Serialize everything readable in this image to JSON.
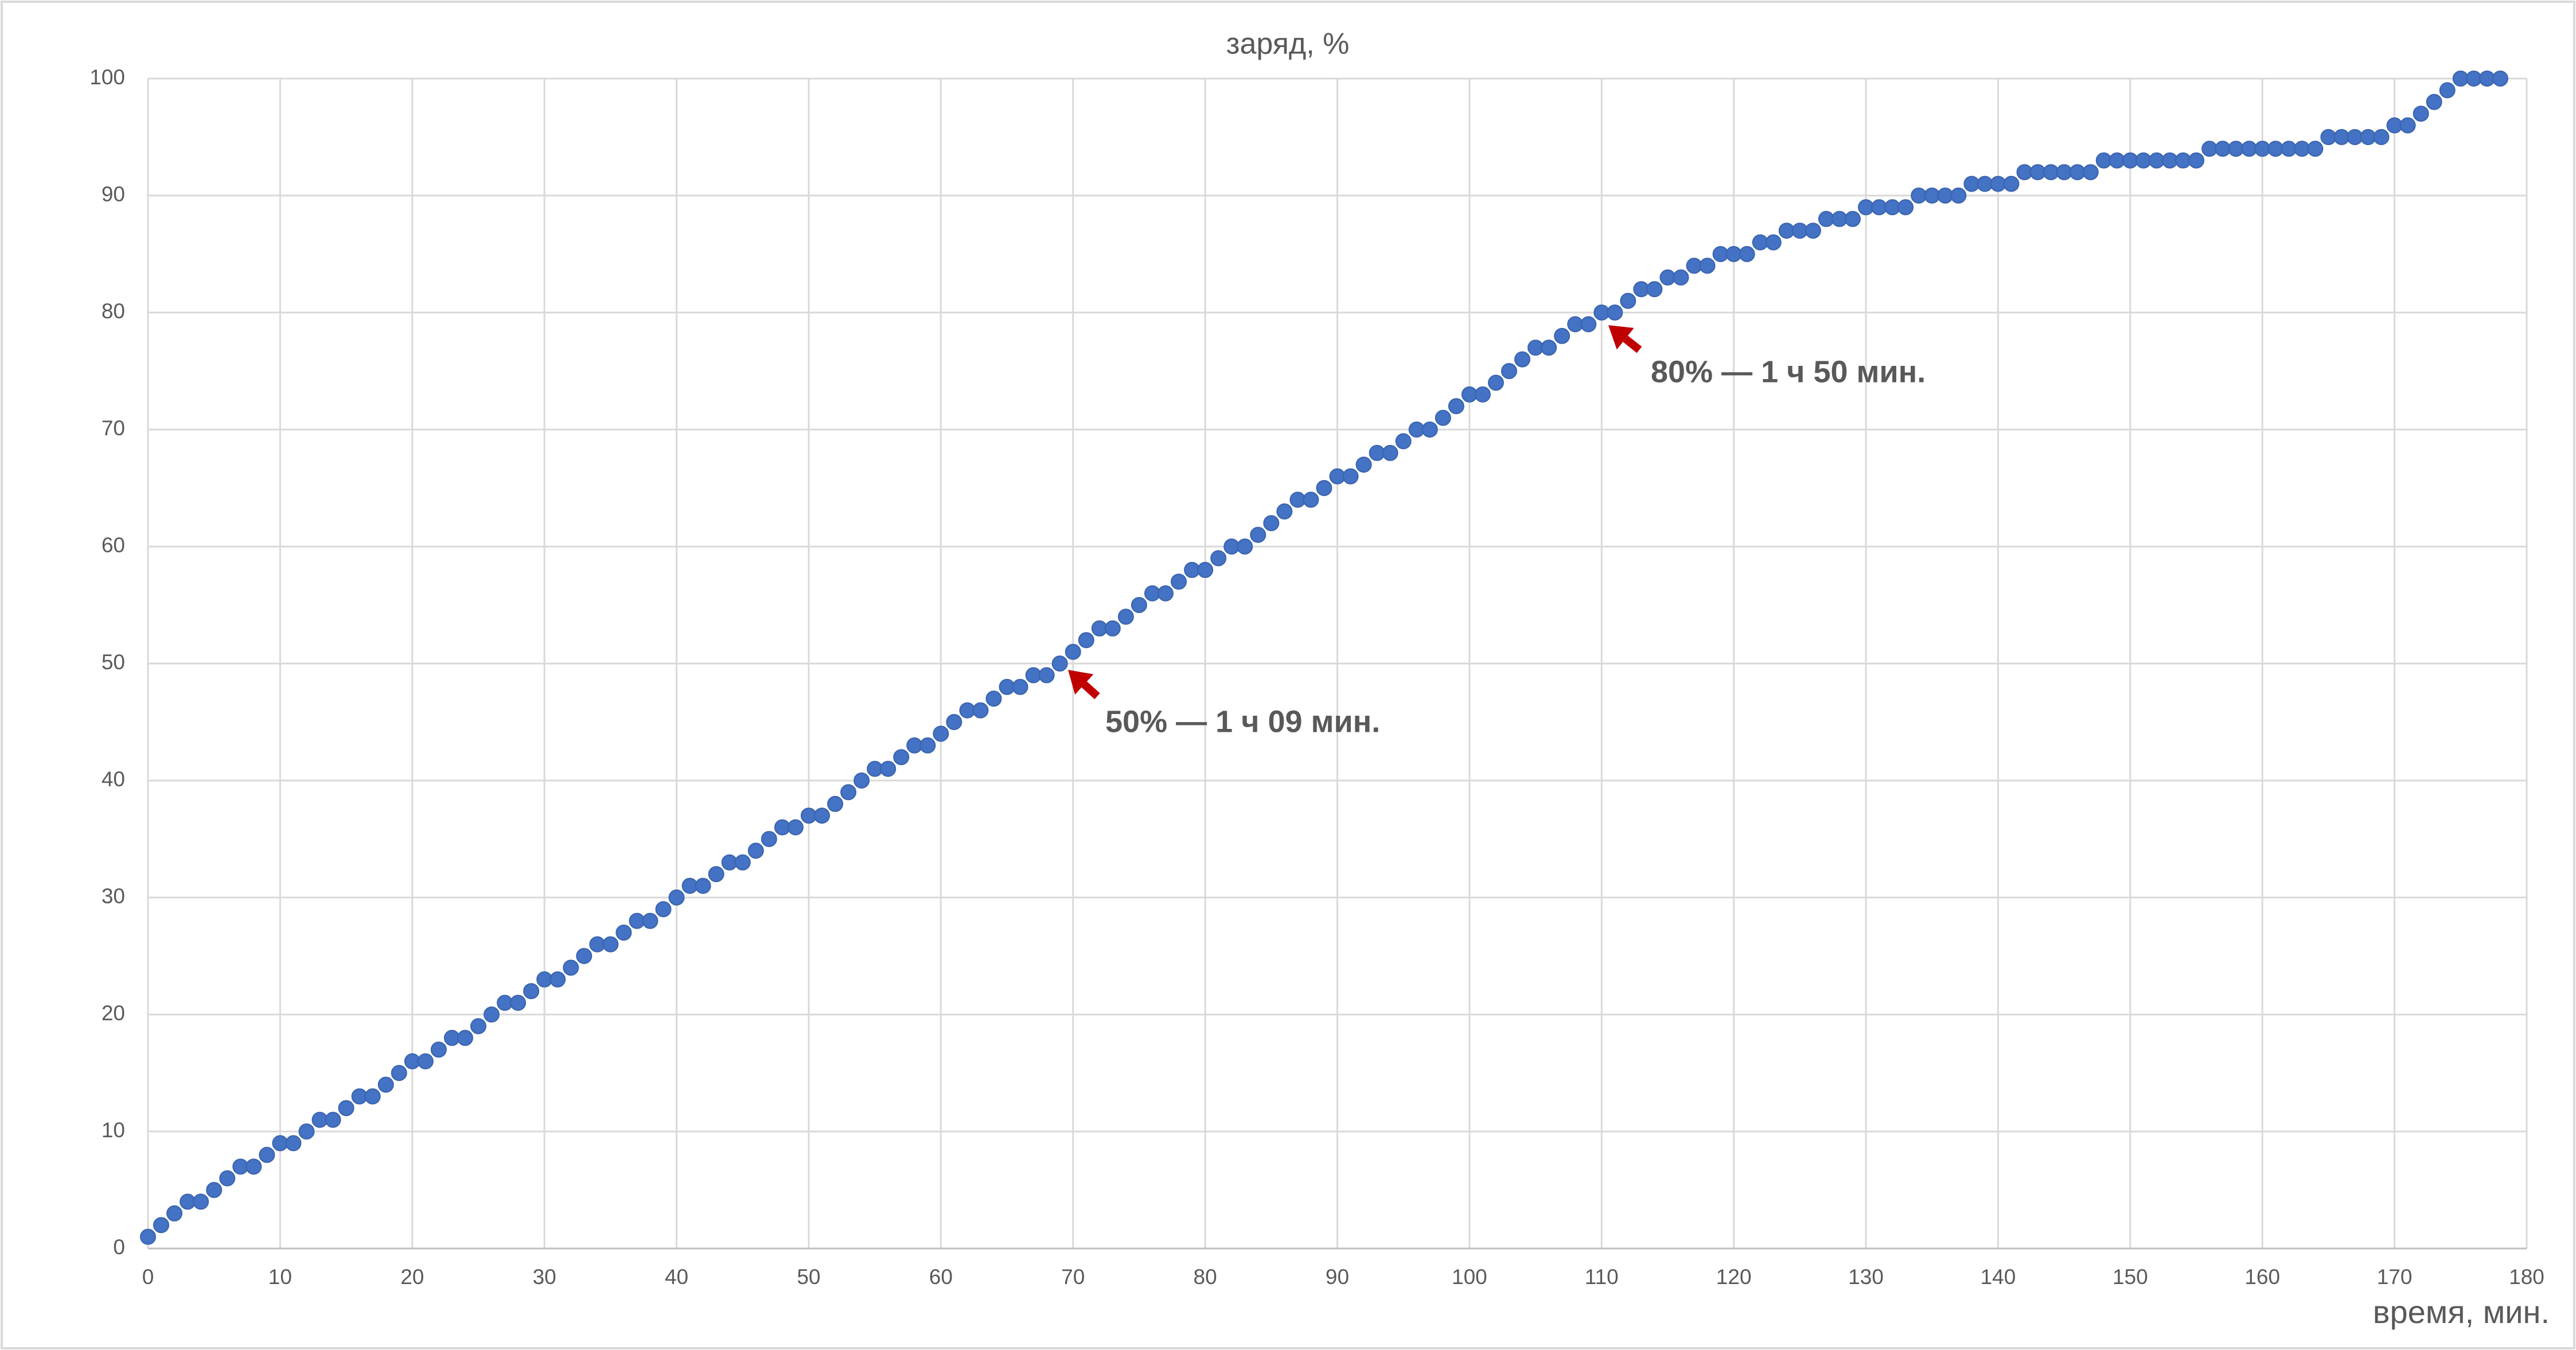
{
  "chart_data": {
    "type": "scatter",
    "title": "заряд, %",
    "x_label": "время, мин.",
    "x": [
      0,
      1,
      2,
      3,
      4,
      5,
      6,
      7,
      8,
      9,
      10,
      11,
      12,
      13,
      14,
      15,
      16,
      17,
      18,
      19,
      20,
      21,
      22,
      23,
      24,
      25,
      26,
      27,
      28,
      29,
      30,
      31,
      32,
      33,
      34,
      35,
      36,
      37,
      38,
      39,
      40,
      41,
      42,
      43,
      44,
      45,
      46,
      47,
      48,
      49,
      50,
      51,
      52,
      53,
      54,
      55,
      56,
      57,
      58,
      59,
      60,
      61,
      62,
      63,
      64,
      65,
      66,
      67,
      68,
      69,
      70,
      71,
      72,
      73,
      74,
      75,
      76,
      77,
      78,
      79,
      80,
      81,
      82,
      83,
      84,
      85,
      86,
      87,
      88,
      89,
      90,
      91,
      92,
      93,
      94,
      95,
      96,
      97,
      98,
      99,
      100,
      101,
      102,
      103,
      104,
      105,
      106,
      107,
      108,
      109,
      110,
      111,
      112,
      113,
      114,
      115,
      116,
      117,
      118,
      119,
      120,
      121,
      122,
      123,
      124,
      125,
      126,
      127,
      128,
      129,
      130,
      131,
      132,
      133,
      134,
      135,
      136,
      137,
      138,
      139,
      140,
      141,
      142,
      143,
      144,
      145,
      146,
      147,
      148,
      149,
      150,
      151,
      152,
      153,
      154,
      155,
      156,
      157,
      158,
      159,
      160,
      161,
      162,
      163,
      164,
      165,
      166,
      167,
      168,
      169,
      170,
      171,
      172,
      173,
      174,
      175,
      176,
      177,
      178
    ],
    "values": [
      1,
      2,
      3,
      4,
      4,
      5,
      6,
      7,
      7,
      8,
      9,
      9,
      10,
      11,
      11,
      12,
      13,
      13,
      14,
      15,
      16,
      16,
      17,
      18,
      18,
      19,
      20,
      21,
      21,
      22,
      23,
      23,
      24,
      25,
      26,
      26,
      27,
      28,
      28,
      29,
      30,
      31,
      31,
      32,
      33,
      33,
      34,
      35,
      36,
      36,
      37,
      37,
      38,
      39,
      40,
      41,
      41,
      42,
      43,
      43,
      44,
      45,
      46,
      46,
      47,
      48,
      48,
      49,
      49,
      50,
      51,
      52,
      53,
      53,
      54,
      55,
      56,
      56,
      57,
      58,
      58,
      59,
      60,
      60,
      61,
      62,
      63,
      64,
      64,
      65,
      66,
      66,
      67,
      68,
      68,
      69,
      70,
      70,
      71,
      72,
      73,
      73,
      74,
      75,
      76,
      77,
      77,
      78,
      79,
      79,
      80,
      80,
      81,
      82,
      82,
      83,
      83,
      84,
      84,
      85,
      85,
      85,
      86,
      86,
      87,
      87,
      87,
      88,
      88,
      88,
      89,
      89,
      89,
      89,
      90,
      90,
      90,
      90,
      91,
      91,
      91,
      91,
      92,
      92,
      92,
      92,
      92,
      92,
      93,
      93,
      93,
      93,
      93,
      93,
      93,
      93,
      94,
      94,
      94,
      94,
      94,
      94,
      94,
      94,
      94,
      95,
      95,
      95,
      95,
      95,
      96,
      96,
      97,
      98,
      99,
      100,
      100,
      100,
      100
    ],
    "color": "#4472c4",
    "xlim": [
      0,
      180
    ],
    "xticks": [
      0,
      10,
      20,
      30,
      40,
      50,
      60,
      70,
      80,
      90,
      100,
      110,
      120,
      130,
      140,
      150,
      160,
      170,
      180
    ],
    "ylim": [
      0,
      100
    ],
    "yticks": [
      0,
      10,
      20,
      30,
      40,
      50,
      60,
      70,
      80,
      90,
      100
    ],
    "grid": true,
    "annotations": [
      "50% — 1 ч 09 мин.",
      "80% — 1 ч 50 мин."
    ]
  }
}
